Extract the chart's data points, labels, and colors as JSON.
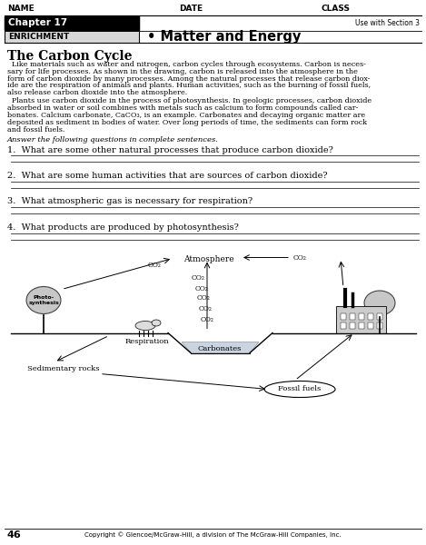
{
  "bg_color": "#ffffff",
  "header": {
    "name_label": "NAME",
    "date_label": "DATE",
    "class_label": "CLASS",
    "chapter_box_text": "Chapter 17",
    "section_text": "Use with Section 3",
    "enrichment_text": "ENRICHMENT",
    "title_bullet": "• Matter and Energy"
  },
  "section_title": "The Carbon Cycle",
  "body_paragraph1": "  Like materials such as water and nitrogen, carbon cycles through ecosystems. Carbon is neces-\nsary for life processes. As shown in the drawing, carbon is released into the atmosphere in the\nform of carbon dioxide by many processes. Among the natural processes that release carbon diox-\nide are the respiration of animals and plants. Human activities, such as the burning of fossil fuels,\nalso release carbon dioxide into the atmosphere.",
  "body_paragraph2": "  Plants use carbon dioxide in the process of photosynthesis. In geologic processes, carbon dioxide\nabsorbed in water or soil combines with metals such as calcium to form compounds called car-\nbonates. Calcium carbonate, CaCO₃, is an example. Carbonates and decaying organic matter are\ndeposited as sediment in bodies of water. Over long periods of time, the sediments can form rock\nand fossil fuels.",
  "instruction_text": "Answer the following questions in complete sentences.",
  "questions": [
    "1.  What are some other natural processes that produce carbon dioxide?",
    "2.  What are some human activities that are sources of carbon dioxide?",
    "3.  What atmospheric gas is necessary for respiration?",
    "4.  What products are produced by photosynthesis?"
  ],
  "footer_page": "46",
  "copyright_text": "Copyright © Glencoe/McGraw-Hill, a division of The McGraw-Hill Companies, Inc."
}
